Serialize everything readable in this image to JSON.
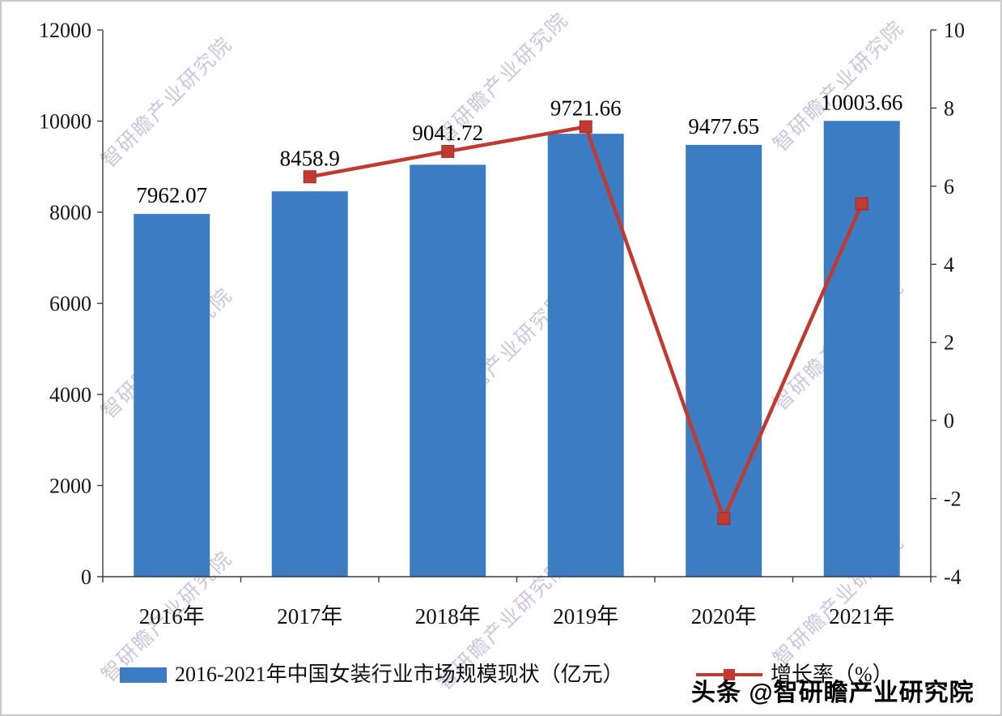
{
  "watermark": {
    "text": "智研瞻产业研究院",
    "color": "#ab9fc4"
  },
  "footer_badge": {
    "text": "头条 @智研瞻产业研究院"
  },
  "chart_data": {
    "type": "bar",
    "subtype": "combo-bar-line",
    "categories": [
      "2016年",
      "2017年",
      "2018年",
      "2019年",
      "2020年",
      "2021年"
    ],
    "series": [
      {
        "name": "2016-2021年中国女装行业市场规模现状（亿元）",
        "type": "bar",
        "axis": "left",
        "color": "#3b7cc3",
        "values": [
          7962.07,
          8458.9,
          9041.72,
          9721.66,
          9477.65,
          10003.66
        ],
        "value_labels": [
          "7962.07",
          "8458.9",
          "9041.72",
          "9721.66",
          "9477.65",
          "10003.66"
        ]
      },
      {
        "name": "增长率（%）",
        "type": "line",
        "axis": "right",
        "color": "#c03a31",
        "marker": "square",
        "values": [
          null,
          6.24,
          6.89,
          7.52,
          -2.51,
          5.55
        ]
      }
    ],
    "left_axis": {
      "min": 0,
      "max": 12000,
      "step": 2000,
      "ticks": [
        0,
        2000,
        4000,
        6000,
        8000,
        10000,
        12000
      ]
    },
    "right_axis": {
      "min": -4,
      "max": 10,
      "step": 2,
      "ticks": [
        -4,
        -2,
        0,
        2,
        4,
        6,
        8,
        10
      ]
    },
    "grid": false,
    "legend_position": "bottom",
    "title": ""
  }
}
